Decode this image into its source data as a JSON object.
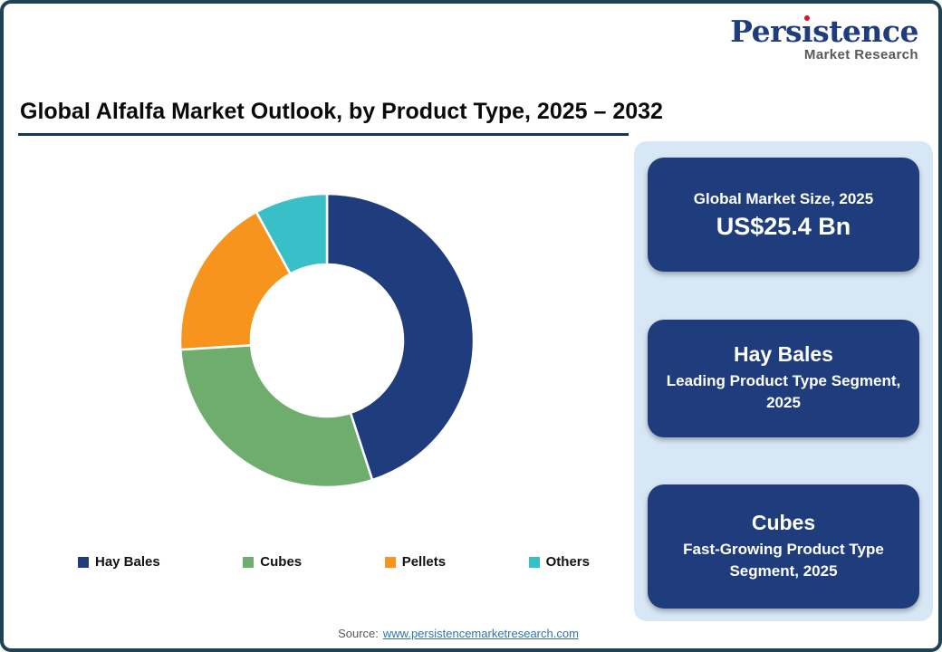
{
  "logo": {
    "brand": "Persistence",
    "tagline": "Market Research"
  },
  "header": {
    "title": "Global Alfalfa Market Outlook, by Product Type, 2025 – 2032"
  },
  "chart_data": {
    "type": "pie",
    "subtype": "donut",
    "title": "Global Alfalfa Market Outlook, by Product Type, 2025 – 2032",
    "categories": [
      "Hay Bales",
      "Cubes",
      "Pellets",
      "Others"
    ],
    "values": [
      45,
      29,
      18,
      8
    ],
    "unit": "percent share (estimated from arc angles; no data labels shown)",
    "colors": [
      "#1F3D7C",
      "#6FAD6F",
      "#F6941E",
      "#38BFC7"
    ],
    "start_angle_deg": 0,
    "direction": "clockwise",
    "donut_hole_ratio": 0.52,
    "legend_position": "bottom"
  },
  "panel": {
    "cards": [
      {
        "top": "Global Market Size, 2025",
        "bottom": "US$25.4 Bn"
      },
      {
        "top": "Hay Bales",
        "bottom": "Leading Product Type Segment, 2025"
      },
      {
        "top": "Cubes",
        "bottom": "Fast-Growing Product Type Segment, 2025"
      }
    ]
  },
  "source": {
    "prefix": "Source:",
    "link": "www.persistencemarketresearch.com"
  },
  "colors": {
    "accent_navy": "#1F3D7C",
    "panel_bg": "#D7E7F5",
    "frame_border": "#1E4154",
    "link": "#2E74B5",
    "logo_red": "#D71920"
  }
}
